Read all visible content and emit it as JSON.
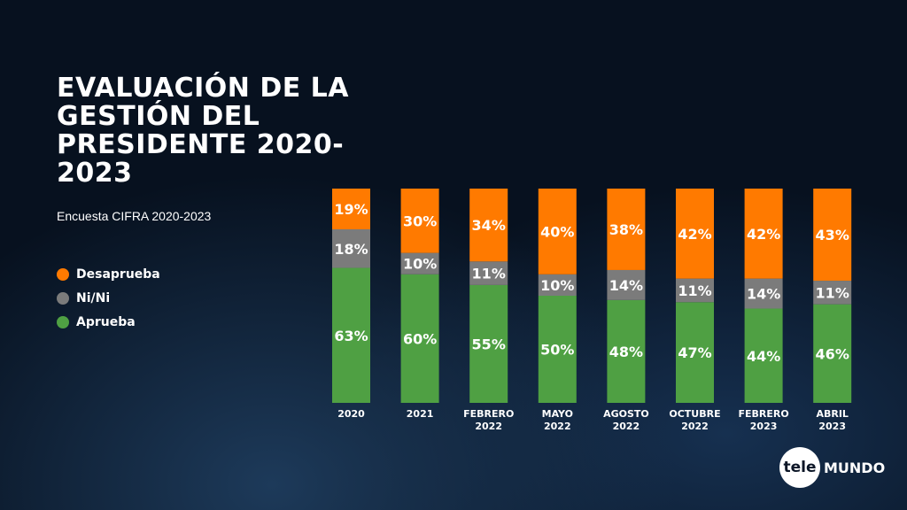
{
  "chart_data": {
    "type": "bar",
    "stacked": true,
    "title": "EVALUACIÓN DE LA GESTIÓN DEL PRESIDENTE 2020-2023",
    "subtitle": "Encuesta CIFRA 2020-2023",
    "categories": [
      [
        "2020"
      ],
      [
        "2021"
      ],
      [
        "FEBRERO",
        "2022"
      ],
      [
        "MAYO",
        "2022"
      ],
      [
        "AGOSTO",
        "2022"
      ],
      [
        "OCTUBRE",
        "2022"
      ],
      [
        "FEBRERO",
        "2023"
      ],
      [
        "ABRIL",
        "2023"
      ]
    ],
    "series": [
      {
        "name": "Aprueba",
        "color": "#4fa043",
        "values": [
          63,
          60,
          55,
          50,
          48,
          47,
          44,
          46
        ]
      },
      {
        "name": "Ni/Ni",
        "color": "#7b7b7b",
        "values": [
          18,
          10,
          11,
          10,
          14,
          11,
          14,
          11
        ]
      },
      {
        "name": "Desaprueba",
        "color": "#ff7a00",
        "values": [
          19,
          30,
          34,
          40,
          38,
          42,
          42,
          43
        ]
      }
    ],
    "legend_order": [
      "Desaprueba",
      "Ni/Ni",
      "Aprueba"
    ],
    "legend_placement": "left",
    "ylim": [
      0,
      100
    ],
    "grid": false
  },
  "logo": {
    "circle": "tele",
    "text": "MUNDO"
  }
}
